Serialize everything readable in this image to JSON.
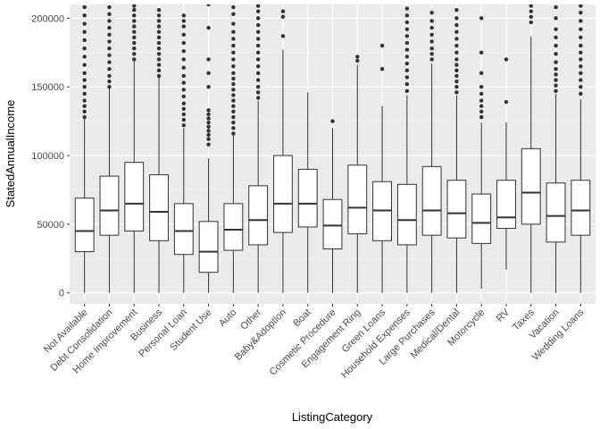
{
  "chart_data": {
    "type": "boxplot",
    "xlabel": "ListingCategory",
    "ylabel": "StatedAnnualIncome",
    "ylim": [
      -8000,
      210000
    ],
    "y_ticks": [
      0,
      50000,
      100000,
      150000,
      200000
    ],
    "y_tick_labels": [
      "0",
      "50000",
      "100000",
      "150000",
      "200000"
    ],
    "grid": true,
    "colors": {
      "panel": "#ebebeb",
      "grid_major": "#ffffff",
      "grid_minor": "#f5f5f5",
      "box_stroke": "#333333",
      "box_fill": "#ffffff",
      "outlier": "#333333"
    },
    "categories": [
      "Not Available",
      "Debt Consolidation",
      "Home Improvement",
      "Business",
      "Personal Loan",
      "Student Use",
      "Auto",
      "Other",
      "Baby&Adoption",
      "Boat",
      "Cosmetic Procedure",
      "Engagement Ring",
      "Green Loans",
      "Household Expenses",
      "Large Purchases",
      "Medical/Dental",
      "Motorcycle",
      "RV",
      "Taxes",
      "Vacation",
      "Wedding Loans"
    ],
    "boxes": [
      {
        "min": 0,
        "q1": 30000,
        "median": 45000,
        "q3": 69000,
        "max": 127000,
        "outliers": [
          128000,
          132000,
          136000,
          140000,
          145000,
          150000,
          155000,
          160000,
          166000,
          172000,
          178000,
          184000,
          190000,
          196000,
          202000,
          208000
        ]
      },
      {
        "min": 0,
        "q1": 42000,
        "median": 60000,
        "q3": 85000,
        "max": 149000,
        "outliers": [
          150000,
          154000,
          158000,
          163000,
          168000,
          173000,
          178000,
          183000,
          188000,
          193000,
          198000,
          203000,
          208000
        ]
      },
      {
        "min": 0,
        "q1": 45000,
        "median": 65000,
        "q3": 95000,
        "max": 169000,
        "outliers": [
          170000,
          174000,
          178000,
          182000,
          186000,
          190000,
          194000,
          198000,
          202000,
          206000,
          209000
        ]
      },
      {
        "min": 0,
        "q1": 38000,
        "median": 59000,
        "q3": 86000,
        "max": 157000,
        "outliers": [
          158000,
          162000,
          166000,
          170000,
          174000,
          178000,
          182000,
          186000,
          190000,
          194000,
          198000,
          202000,
          206000
        ]
      },
      {
        "min": 0,
        "q1": 28000,
        "median": 45000,
        "q3": 65000,
        "max": 120000,
        "outliers": [
          122000,
          126000,
          130000,
          134000,
          138000,
          143000,
          148000,
          153000,
          158000,
          164000,
          170000,
          176000,
          182000,
          188000,
          194000,
          198000,
          202000
        ]
      },
      {
        "min": 0,
        "q1": 15000,
        "median": 30000,
        "q3": 52000,
        "max": 98000,
        "outliers": [
          108000,
          112000,
          115000,
          118000,
          121000,
          124000,
          127000,
          130000,
          133000,
          150000,
          160000,
          170000,
          193000,
          210000
        ]
      },
      {
        "min": 0,
        "q1": 31000,
        "median": 46000,
        "q3": 65000,
        "max": 115000,
        "outliers": [
          116000,
          120000,
          124000,
          128000,
          132000,
          136000,
          140000,
          144000,
          148000,
          152000,
          156000,
          160000,
          165000,
          170000,
          175000,
          180000,
          185000,
          190000,
          196000,
          203000,
          208000
        ]
      },
      {
        "min": 0,
        "q1": 35000,
        "median": 53000,
        "q3": 78000,
        "max": 140000,
        "outliers": [
          142000,
          146000,
          150000,
          155000,
          160000,
          165000,
          170000,
          175000,
          180000,
          185000,
          190000,
          195000,
          200000,
          205000,
          209000
        ]
      },
      {
        "min": 0,
        "q1": 44000,
        "median": 65000,
        "q3": 100000,
        "max": 177000,
        "outliers": [
          187000,
          201000,
          205000
        ]
      },
      {
        "min": 0,
        "q1": 48000,
        "median": 65000,
        "q3": 90000,
        "max": 146000,
        "outliers": []
      },
      {
        "min": 0,
        "q1": 32000,
        "median": 49000,
        "q3": 68000,
        "max": 120000,
        "outliers": [
          125000
        ]
      },
      {
        "min": 0,
        "q1": 43000,
        "median": 62000,
        "q3": 93000,
        "max": 166000,
        "outliers": [
          169000,
          172000
        ]
      },
      {
        "min": 0,
        "q1": 38000,
        "median": 60000,
        "q3": 81000,
        "max": 136000,
        "outliers": [
          163000,
          180000
        ]
      },
      {
        "min": 0,
        "q1": 35000,
        "median": 53000,
        "q3": 79000,
        "max": 144000,
        "outliers": [
          147000,
          152000,
          157000,
          162000,
          167000,
          172000,
          177000,
          182000,
          187000,
          192000,
          197000,
          202000,
          207000
        ]
      },
      {
        "min": 0,
        "q1": 42000,
        "median": 60000,
        "q3": 92000,
        "max": 167000,
        "outliers": [
          170000,
          174000,
          178000,
          183000,
          188000,
          193000,
          198000,
          204000
        ]
      },
      {
        "min": 0,
        "q1": 40000,
        "median": 58000,
        "q3": 82000,
        "max": 144000,
        "outliers": [
          146000,
          150000,
          154000,
          158000,
          162000,
          166000,
          170000,
          175000,
          180000,
          185000,
          190000,
          195000,
          200000,
          206000
        ]
      },
      {
        "min": 3000,
        "q1": 36000,
        "median": 51000,
        "q3": 72000,
        "max": 124000,
        "outliers": [
          128000,
          132000,
          136000,
          140000,
          145000,
          150000,
          160000,
          175000,
          200000
        ]
      },
      {
        "min": 17000,
        "q1": 47000,
        "median": 55000,
        "q3": 82000,
        "max": 124000,
        "outliers": [
          139000,
          170000
        ]
      },
      {
        "min": 0,
        "q1": 50000,
        "median": 73000,
        "q3": 105000,
        "max": 187000,
        "outliers": [
          197000,
          201000,
          205000,
          209000
        ]
      },
      {
        "min": 0,
        "q1": 37000,
        "median": 56000,
        "q3": 80000,
        "max": 145000,
        "outliers": [
          147000,
          151000,
          155000,
          159000,
          163000,
          168000,
          174000,
          180000,
          186000,
          192000,
          200000,
          208000
        ]
      },
      {
        "min": 0,
        "q1": 42000,
        "median": 60000,
        "q3": 82000,
        "max": 141000,
        "outliers": [
          145000,
          150000,
          155000,
          160000,
          165000,
          170000,
          175000,
          180000,
          186000,
          192000,
          198000,
          204000,
          209000
        ]
      }
    ]
  }
}
